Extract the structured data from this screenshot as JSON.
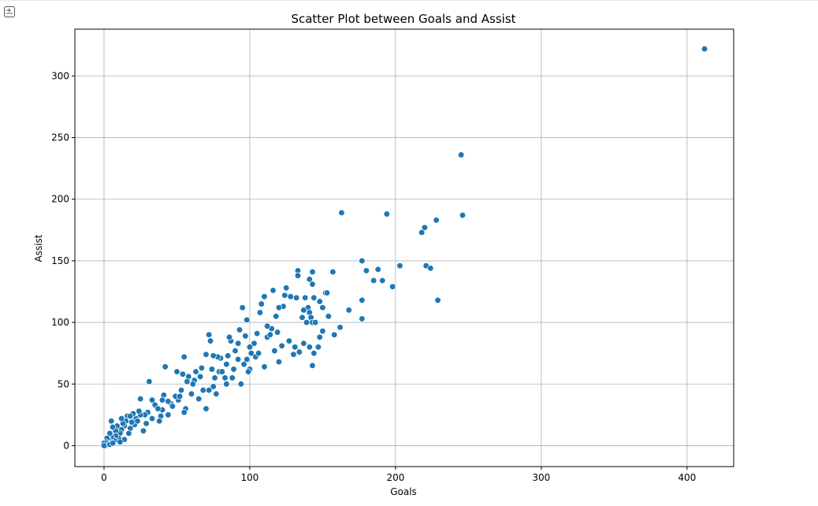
{
  "notebook": {
    "output_toggle_icon": "output-collapse-icon"
  },
  "chart_data": {
    "type": "scatter",
    "title": "Scatter Plot between Goals and Assist",
    "xlabel": "Goals",
    "ylabel": "Assist",
    "xlim": [
      -20,
      432
    ],
    "ylim": [
      -17,
      338
    ],
    "xticks": [
      0,
      100,
      200,
      300,
      400
    ],
    "yticks": [
      0,
      50,
      100,
      150,
      200,
      250,
      300
    ],
    "grid": true,
    "marker_color": "#1f77b4",
    "points": [
      [
        412,
        322
      ],
      [
        245,
        236
      ],
      [
        163,
        189
      ],
      [
        194,
        188
      ],
      [
        246,
        187
      ],
      [
        228,
        183
      ],
      [
        220,
        177
      ],
      [
        218,
        173
      ],
      [
        177,
        150
      ],
      [
        221,
        146
      ],
      [
        203,
        146
      ],
      [
        224,
        144
      ],
      [
        180,
        142
      ],
      [
        188,
        143
      ],
      [
        185,
        134
      ],
      [
        191,
        134
      ],
      [
        198,
        129
      ],
      [
        229,
        118
      ],
      [
        177,
        118
      ],
      [
        177,
        103
      ],
      [
        162,
        96
      ],
      [
        168,
        110
      ],
      [
        157,
        141
      ],
      [
        158,
        90
      ],
      [
        152,
        124
      ],
      [
        153,
        124
      ],
      [
        150,
        112
      ],
      [
        148,
        117
      ],
      [
        154,
        105
      ],
      [
        150,
        93
      ],
      [
        148,
        88
      ],
      [
        144,
        120
      ],
      [
        143,
        141
      ],
      [
        141,
        135
      ],
      [
        143,
        131
      ],
      [
        138,
        120
      ],
      [
        140,
        112
      ],
      [
        137,
        110
      ],
      [
        141,
        108
      ],
      [
        142,
        104
      ],
      [
        139,
        100
      ],
      [
        143,
        100
      ],
      [
        137,
        83
      ],
      [
        141,
        80
      ],
      [
        144,
        75
      ],
      [
        143,
        65
      ],
      [
        133,
        142
      ],
      [
        133,
        138
      ],
      [
        136,
        104
      ],
      [
        131,
        80
      ],
      [
        134,
        76
      ],
      [
        128,
        121
      ],
      [
        125,
        128
      ],
      [
        124,
        122
      ],
      [
        123,
        113
      ],
      [
        120,
        112
      ],
      [
        116,
        126
      ],
      [
        118,
        105
      ],
      [
        119,
        92
      ],
      [
        115,
        95
      ],
      [
        112,
        97
      ],
      [
        112,
        88
      ],
      [
        108,
        115
      ],
      [
        107,
        108
      ],
      [
        105,
        91
      ],
      [
        103,
        83
      ],
      [
        110,
        121
      ],
      [
        117,
        77
      ],
      [
        120,
        68
      ],
      [
        122,
        81
      ],
      [
        127,
        85
      ],
      [
        130,
        74
      ],
      [
        95,
        112
      ],
      [
        93,
        94
      ],
      [
        98,
        102
      ],
      [
        97,
        89
      ],
      [
        100,
        80
      ],
      [
        101,
        75
      ],
      [
        98,
        70
      ],
      [
        100,
        62
      ],
      [
        96,
        66
      ],
      [
        104,
        72
      ],
      [
        110,
        64
      ],
      [
        92,
        83
      ],
      [
        90,
        77
      ],
      [
        92,
        70
      ],
      [
        89,
        62
      ],
      [
        87,
        85
      ],
      [
        86,
        88
      ],
      [
        85,
        73
      ],
      [
        84,
        66
      ],
      [
        83,
        55
      ],
      [
        84,
        50
      ],
      [
        80,
        71
      ],
      [
        78,
        72
      ],
      [
        75,
        73
      ],
      [
        73,
        85
      ],
      [
        72,
        90
      ],
      [
        70,
        74
      ],
      [
        79,
        60
      ],
      [
        81,
        60
      ],
      [
        76,
        55
      ],
      [
        75,
        48
      ],
      [
        72,
        45
      ],
      [
        70,
        30
      ],
      [
        77,
        42
      ],
      [
        67,
        63
      ],
      [
        66,
        56
      ],
      [
        63,
        60
      ],
      [
        62,
        53
      ],
      [
        65,
        38
      ],
      [
        60,
        42
      ],
      [
        58,
        56
      ],
      [
        55,
        72
      ],
      [
        54,
        58
      ],
      [
        57,
        52
      ],
      [
        56,
        30
      ],
      [
        53,
        45
      ],
      [
        51,
        37
      ],
      [
        55,
        27
      ],
      [
        50,
        60
      ],
      [
        49,
        40
      ],
      [
        46,
        34
      ],
      [
        44,
        36
      ],
      [
        42,
        64
      ],
      [
        41,
        41
      ],
      [
        40,
        29
      ],
      [
        40,
        37
      ],
      [
        39,
        24
      ],
      [
        38,
        20
      ],
      [
        35,
        33
      ],
      [
        33,
        22
      ],
      [
        33,
        37
      ],
      [
        31,
        52
      ],
      [
        30,
        27
      ],
      [
        29,
        18
      ],
      [
        28,
        25
      ],
      [
        25,
        25
      ],
      [
        25,
        38
      ],
      [
        24,
        28
      ],
      [
        22,
        22
      ],
      [
        21,
        17
      ],
      [
        20,
        26
      ],
      [
        19,
        19
      ],
      [
        18,
        14
      ],
      [
        17,
        10
      ],
      [
        16,
        24
      ],
      [
        15,
        20
      ],
      [
        14,
        16
      ],
      [
        13,
        18
      ],
      [
        12,
        22
      ],
      [
        12,
        13
      ],
      [
        11,
        10
      ],
      [
        10,
        6
      ],
      [
        9,
        16
      ],
      [
        8,
        12
      ],
      [
        8,
        8
      ],
      [
        7,
        4
      ],
      [
        6,
        15
      ],
      [
        5,
        20
      ],
      [
        5,
        7
      ],
      [
        4,
        10
      ],
      [
        3,
        5
      ],
      [
        3,
        2
      ],
      [
        2,
        6
      ],
      [
        2,
        2
      ],
      [
        1,
        3
      ],
      [
        1,
        0
      ],
      [
        0,
        2
      ],
      [
        0,
        0
      ],
      [
        4,
        1
      ],
      [
        6,
        2
      ],
      [
        14,
        5
      ],
      [
        11,
        3
      ],
      [
        18,
        24
      ],
      [
        23,
        20
      ],
      [
        27,
        12
      ],
      [
        37,
        30
      ],
      [
        44,
        25
      ],
      [
        47,
        32
      ],
      [
        52,
        40
      ],
      [
        61,
        50
      ],
      [
        68,
        45
      ],
      [
        74,
        62
      ],
      [
        88,
        55
      ],
      [
        94,
        50
      ],
      [
        99,
        60
      ],
      [
        106,
        75
      ],
      [
        114,
        90
      ],
      [
        132,
        120
      ],
      [
        145,
        100
      ],
      [
        147,
        80
      ]
    ]
  }
}
